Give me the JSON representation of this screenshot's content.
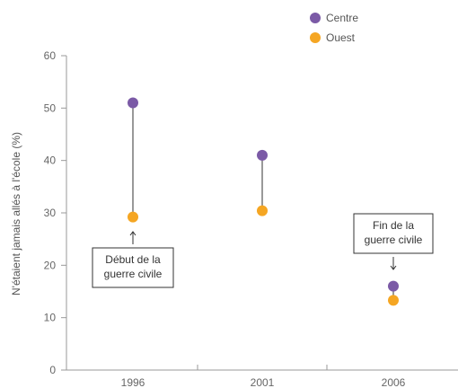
{
  "chart_data": {
    "type": "scatter",
    "ylabel": "N'étaient jamais allés à l'école (%)",
    "ylim": [
      0,
      60
    ],
    "yticks": [
      "0",
      "10",
      "20",
      "30",
      "40",
      "50",
      "60"
    ],
    "categories": [
      "1996",
      "2001",
      "2006"
    ],
    "series": [
      {
        "name": "Centre",
        "color": "#7b5aa6",
        "values": [
          51,
          41,
          16
        ]
      },
      {
        "name": "Ouest",
        "color": "#f5a623",
        "values": [
          29.2,
          30.4,
          13.3
        ]
      }
    ],
    "legend": "top",
    "grid": false,
    "annotations": [
      {
        "category": "1996",
        "lines": [
          "Début de la",
          "guerre civile"
        ],
        "arrow": "up"
      },
      {
        "category": "2006",
        "lines": [
          "Fin de la",
          "guerre civile"
        ],
        "arrow": "down"
      }
    ]
  }
}
